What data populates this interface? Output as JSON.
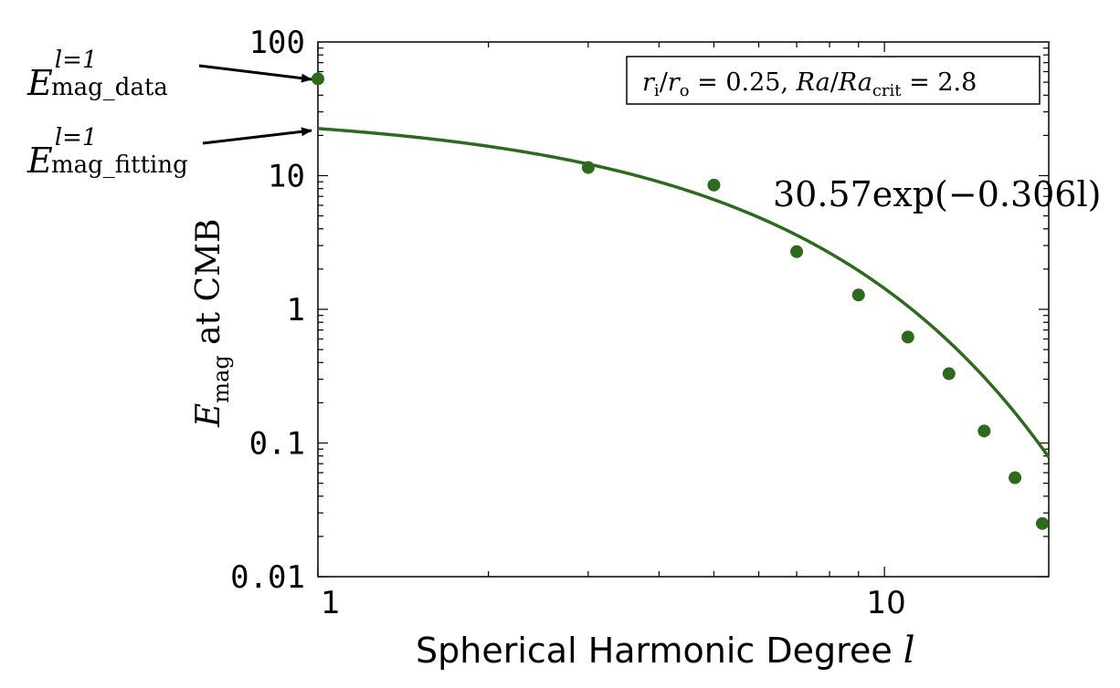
{
  "chart_data": {
    "type": "scatter",
    "x_scale": "log",
    "y_scale": "log",
    "xlim": [
      1,
      19.5
    ],
    "ylim": [
      0.01,
      100
    ],
    "x_ticks": [
      {
        "value": 1,
        "label": "1"
      },
      {
        "value": 10,
        "label": "10"
      }
    ],
    "y_ticks": [
      {
        "value": 100,
        "label": "100"
      },
      {
        "value": 10,
        "label": "10"
      },
      {
        "value": 1,
        "label": "1"
      },
      {
        "value": 0.1,
        "label": "0.1"
      },
      {
        "value": 0.01,
        "label": "0.01"
      }
    ],
    "xlabel": {
      "text": "Spherical Harmonic Degree ",
      "var": "l"
    },
    "ylabel": {
      "sym": "E",
      "sub": "mag",
      "rest": " at CMB"
    },
    "series": [
      {
        "kind": "points",
        "color": "#2e6a1e",
        "x": [
          1,
          3,
          5,
          7,
          9,
          11,
          13,
          15,
          17,
          19
        ],
        "y": [
          53,
          11.5,
          8.5,
          2.7,
          1.28,
          0.62,
          0.33,
          0.123,
          0.055,
          0.025
        ]
      },
      {
        "kind": "fit",
        "color": "#2e6a1e",
        "amplitude": 30.57,
        "rate": 0.306,
        "label": "30.57exp(−0.306l)"
      }
    ],
    "legend_box": {
      "parts": {
        "r1": "r",
        "r1_sub": "i",
        "slash": "/",
        "r2": "r",
        "r2_sub": "o",
        "eq1": " = 0.25, ",
        "ra1": "Ra",
        "slash2": "/",
        "ra2": "Ra",
        "ra2_sub": "crit",
        "eq2": " = 2.8"
      }
    },
    "annotations": [
      {
        "sym": "E",
        "sup": "l=1",
        "sub": "mag_data",
        "target_x": 1,
        "target_y": 53
      },
      {
        "sym": "E",
        "sup": "l=1",
        "sub": "mag_fitting",
        "target_x": 1,
        "target_y": 22.5
      }
    ]
  }
}
